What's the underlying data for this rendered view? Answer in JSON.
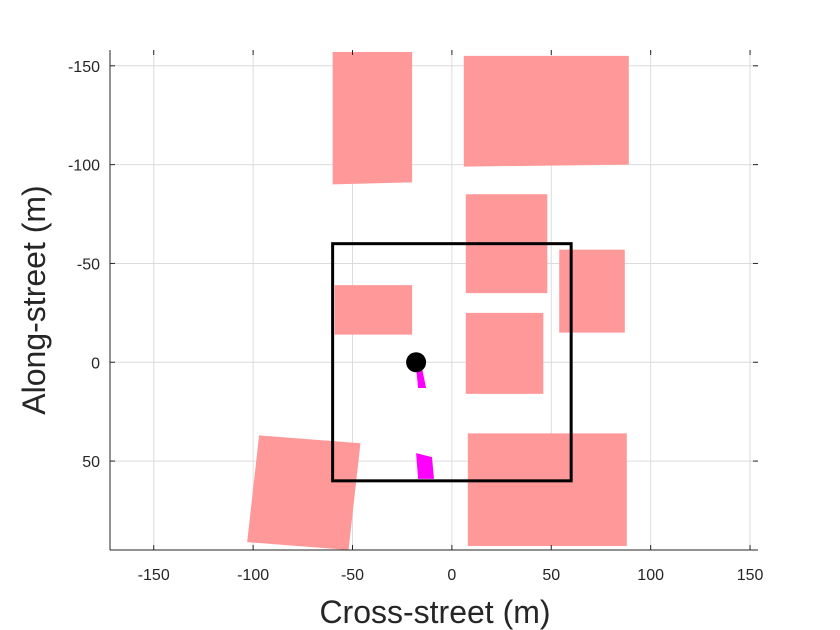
{
  "chart_data": {
    "type": "scatter",
    "title": "",
    "xlabel": "Cross-street (m)",
    "ylabel": "Along-street (m)",
    "xlim": [
      -172,
      154
    ],
    "ylim": [
      -158,
      95
    ],
    "y_axis_reversed": true,
    "grid": true,
    "x_ticks": [
      -150,
      -100,
      -50,
      0,
      50,
      100,
      150
    ],
    "x_tick_labels": [
      "-150",
      "-100",
      "-50",
      "0",
      "50",
      "100",
      "150"
    ],
    "y_ticks": [
      -150,
      -100,
      -50,
      0,
      50
    ],
    "y_tick_labels": [
      "-150",
      "-100",
      "-50",
      "0",
      "50"
    ],
    "colors": {
      "building": "#ff9999",
      "region": "#000000",
      "marker": "#000000",
      "source": "#ff00ff",
      "grid": "#dcdcdc"
    },
    "buildings": [
      {
        "name": "building-1",
        "points": [
          [
            -60,
            -157
          ],
          [
            -20,
            -157
          ],
          [
            -20,
            -91
          ],
          [
            -60,
            -90
          ]
        ]
      },
      {
        "name": "building-2",
        "points": [
          [
            6,
            -155
          ],
          [
            89,
            -155
          ],
          [
            89,
            -100
          ],
          [
            6,
            -99
          ]
        ]
      },
      {
        "name": "building-3",
        "points": [
          [
            7,
            -85
          ],
          [
            48,
            -85
          ],
          [
            48,
            -35
          ],
          [
            7,
            -35
          ]
        ]
      },
      {
        "name": "building-4",
        "points": [
          [
            54,
            -57
          ],
          [
            87,
            -57
          ],
          [
            87,
            -15
          ],
          [
            54,
            -15
          ]
        ]
      },
      {
        "name": "building-5",
        "points": [
          [
            -59,
            -39
          ],
          [
            -20,
            -39
          ],
          [
            -20,
            -14
          ],
          [
            -59,
            -14
          ]
        ]
      },
      {
        "name": "building-6",
        "points": [
          [
            7,
            -25
          ],
          [
            46,
            -25
          ],
          [
            46,
            16
          ],
          [
            7,
            16
          ]
        ]
      },
      {
        "name": "building-7",
        "points": [
          [
            -97,
            37
          ],
          [
            -46,
            41
          ],
          [
            -52,
            95
          ],
          [
            -103,
            91
          ]
        ]
      },
      {
        "name": "building-8",
        "points": [
          [
            8,
            36
          ],
          [
            88,
            36
          ],
          [
            88,
            93
          ],
          [
            8,
            93
          ]
        ]
      }
    ],
    "region": {
      "x": [
        -60,
        60
      ],
      "y": [
        -60,
        60
      ]
    },
    "sources": [
      {
        "name": "source-1",
        "points": [
          [
            -18,
            3
          ],
          [
            -15,
            3
          ],
          [
            -13,
            13
          ],
          [
            -17,
            13
          ]
        ]
      },
      {
        "name": "source-2",
        "points": [
          [
            -18,
            46
          ],
          [
            -10,
            48
          ],
          [
            -9,
            59
          ],
          [
            -17,
            59
          ]
        ]
      }
    ],
    "marker": {
      "x": -18,
      "y": 0
    }
  }
}
